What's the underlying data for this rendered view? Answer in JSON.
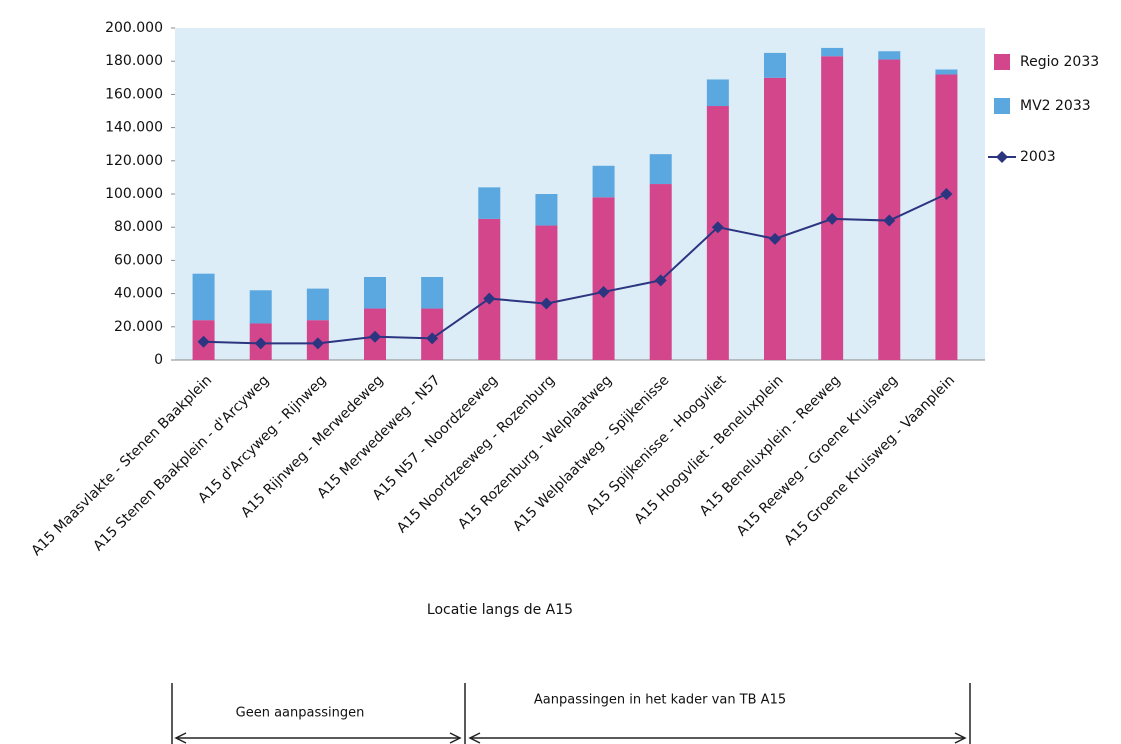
{
  "chart_data": {
    "type": "bar",
    "x_label": "Locatie langs de A15",
    "categories": [
      "A15 Maasvlakte - Stenen Baakplein",
      "A15 Stenen Baakplein - d'Arcyweg",
      "A15 d'Arcyweg - Rijnweg",
      "A15 Rijnweg - Merwedeweg",
      "A15 Merwedeweg - N57",
      "A15 N57 - Noordzeeweg",
      "A15 Noordzeeweg - Rozenburg",
      "A15 Rozenburg - Welplaatweg",
      "A15 Welplaatweg - Spijkenisse",
      "A15 Spijkenisse - Hoogvliet",
      "A15 Hoogvliet - Beneluxplein",
      "A15 Beneluxplein - Reeweg",
      "A15 Reeweg - Groene Kruisweg",
      "A15 Groene Kruisweg - Vaanplein"
    ],
    "stacked": true,
    "series": [
      {
        "name": "Regio 2033",
        "color": "#d4468c",
        "type": "bar",
        "values": [
          24000,
          22000,
          24000,
          31000,
          31000,
          85000,
          81000,
          98000,
          106000,
          153000,
          170000,
          183000,
          181000,
          172000
        ]
      },
      {
        "name": "MV2 2033",
        "color": "#5ba8e0",
        "type": "bar",
        "values": [
          28000,
          20000,
          19000,
          19000,
          19000,
          19000,
          19000,
          19000,
          18000,
          16000,
          15000,
          5000,
          5000,
          3000
        ]
      },
      {
        "name": "2003",
        "color": "#2b3580",
        "type": "line",
        "values": [
          11000,
          10000,
          10000,
          14000,
          13000,
          37000,
          34000,
          41000,
          48000,
          80000,
          73000,
          85000,
          84000,
          100000
        ]
      }
    ],
    "ylim": [
      0,
      200000
    ],
    "yticks": [
      0,
      {
        "value": 20000,
        "label": "20.000"
      },
      {
        "value": 40000,
        "label": "40.000"
      },
      {
        "value": 60000,
        "label": "60.000"
      },
      {
        "value": 80000,
        "label": "80.000"
      },
      {
        "value": 100000,
        "label": "100.000"
      },
      {
        "value": 120000,
        "label": "120.000"
      },
      {
        "value": 140000,
        "label": "140.000"
      },
      {
        "value": 160000,
        "label": "160.000"
      },
      {
        "value": 180000,
        "label": "180.000"
      },
      {
        "value": 200000,
        "label": "200.000"
      }
    ],
    "legend": "right",
    "plot_background": "#dcedf8",
    "annotations": [
      "Geen aanpassingen",
      "Aanpassingen in het kader van TB A15"
    ]
  }
}
